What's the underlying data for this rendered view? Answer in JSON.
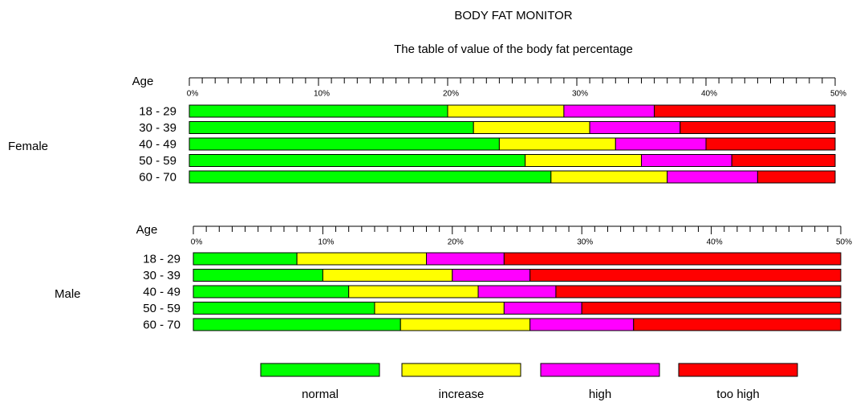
{
  "title": "BODY FAT MONITOR",
  "subtitle": "The table of value of the body fat percentage",
  "legend": "bottom",
  "chart_data": [
    {
      "type": "bar",
      "orientation": "horizontal",
      "stacked": true,
      "group_label": "Female",
      "category_axis_label": "Age",
      "categories": [
        "18 - 29",
        "30 - 39",
        "40 - 49",
        "50 - 59",
        "60 - 70"
      ],
      "series": [
        {
          "name": "normal",
          "color": "#00ff00",
          "values": [
            20,
            22,
            24,
            26,
            28
          ]
        },
        {
          "name": "increase",
          "color": "#ffff00",
          "values": [
            9,
            9,
            9,
            9,
            9
          ]
        },
        {
          "name": "high",
          "color": "#ff00ff",
          "values": [
            7,
            7,
            7,
            7,
            7
          ]
        },
        {
          "name": "too high",
          "color": "#ff0000",
          "values": [
            14,
            12,
            10,
            8,
            6
          ]
        }
      ],
      "xlim": [
        0,
        50
      ],
      "xticks": [
        {
          "value": 0,
          "label": "0%"
        },
        {
          "value": 10,
          "label": "10%"
        },
        {
          "value": 20,
          "label": "20%"
        },
        {
          "value": 30,
          "label": "30%"
        },
        {
          "value": 40,
          "label": "40%"
        },
        {
          "value": 50,
          "label": "50%"
        }
      ]
    },
    {
      "type": "bar",
      "orientation": "horizontal",
      "stacked": true,
      "group_label": "Male",
      "category_axis_label": "Age",
      "categories": [
        "18 - 29",
        "30 - 39",
        "40 - 49",
        "50 - 59",
        "60 - 70"
      ],
      "series": [
        {
          "name": "normal",
          "color": "#00ff00",
          "values": [
            8,
            10,
            12,
            14,
            16
          ]
        },
        {
          "name": "increase",
          "color": "#ffff00",
          "values": [
            10,
            10,
            10,
            10,
            10
          ]
        },
        {
          "name": "high",
          "color": "#ff00ff",
          "values": [
            6,
            6,
            6,
            6,
            8
          ]
        },
        {
          "name": "too high",
          "color": "#ff0000",
          "values": [
            26,
            24,
            22,
            20,
            16
          ]
        }
      ],
      "xlim": [
        0,
        50
      ],
      "xticks": [
        {
          "value": 0,
          "label": "0%"
        },
        {
          "value": 10,
          "label": "10%"
        },
        {
          "value": 20,
          "label": "20%"
        },
        {
          "value": 30,
          "label": "30%"
        },
        {
          "value": 40,
          "label": "40%"
        },
        {
          "value": 50,
          "label": "50%"
        }
      ]
    }
  ]
}
